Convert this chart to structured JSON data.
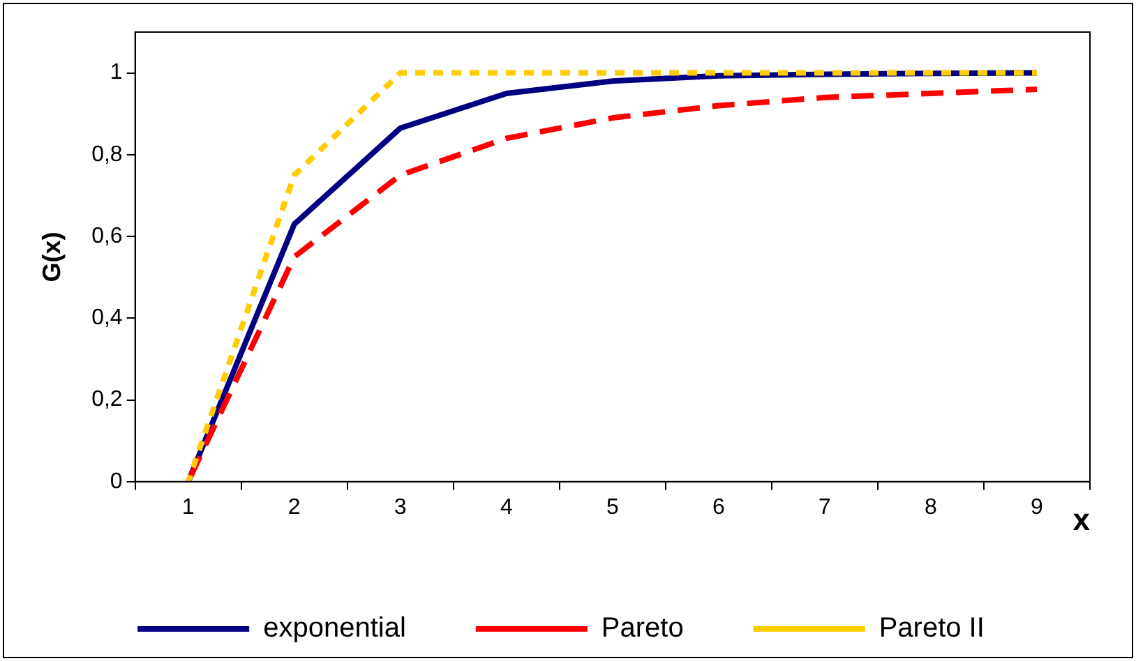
{
  "chart_data": {
    "type": "line",
    "xlabel": "x",
    "ylabel": "G(x)",
    "categories": [
      "1",
      "2",
      "3",
      "4",
      "5",
      "6",
      "7",
      "8",
      "9"
    ],
    "series": [
      {
        "name": "exponential",
        "color": "#000080",
        "line_style": "solid",
        "values": [
          0,
          0.63,
          0.865,
          0.95,
          0.98,
          0.993,
          0.997,
          0.999,
          1
        ]
      },
      {
        "name": "Pareto",
        "color": "#ff0000",
        "line_style": "dashed",
        "values": [
          0,
          0.55,
          0.75,
          0.84,
          0.89,
          0.92,
          0.94,
          0.95,
          0.96
        ]
      },
      {
        "name": "Pareto II",
        "color": "#ffcc00",
        "line_style": "dotted",
        "values": [
          0,
          0.75,
          1,
          1,
          1,
          1,
          1,
          1,
          1
        ]
      }
    ],
    "ylim": [
      0,
      1.1
    ],
    "yticks": [
      0,
      {
        "value": 0.2,
        "label": "0,2"
      },
      {
        "value": 0.4,
        "label": "0,4"
      },
      {
        "value": 0.6,
        "label": "0,6"
      },
      {
        "value": 0.8,
        "label": "0,8"
      },
      1
    ],
    "grid": false,
    "legend": "bottom",
    "marker": "none"
  }
}
